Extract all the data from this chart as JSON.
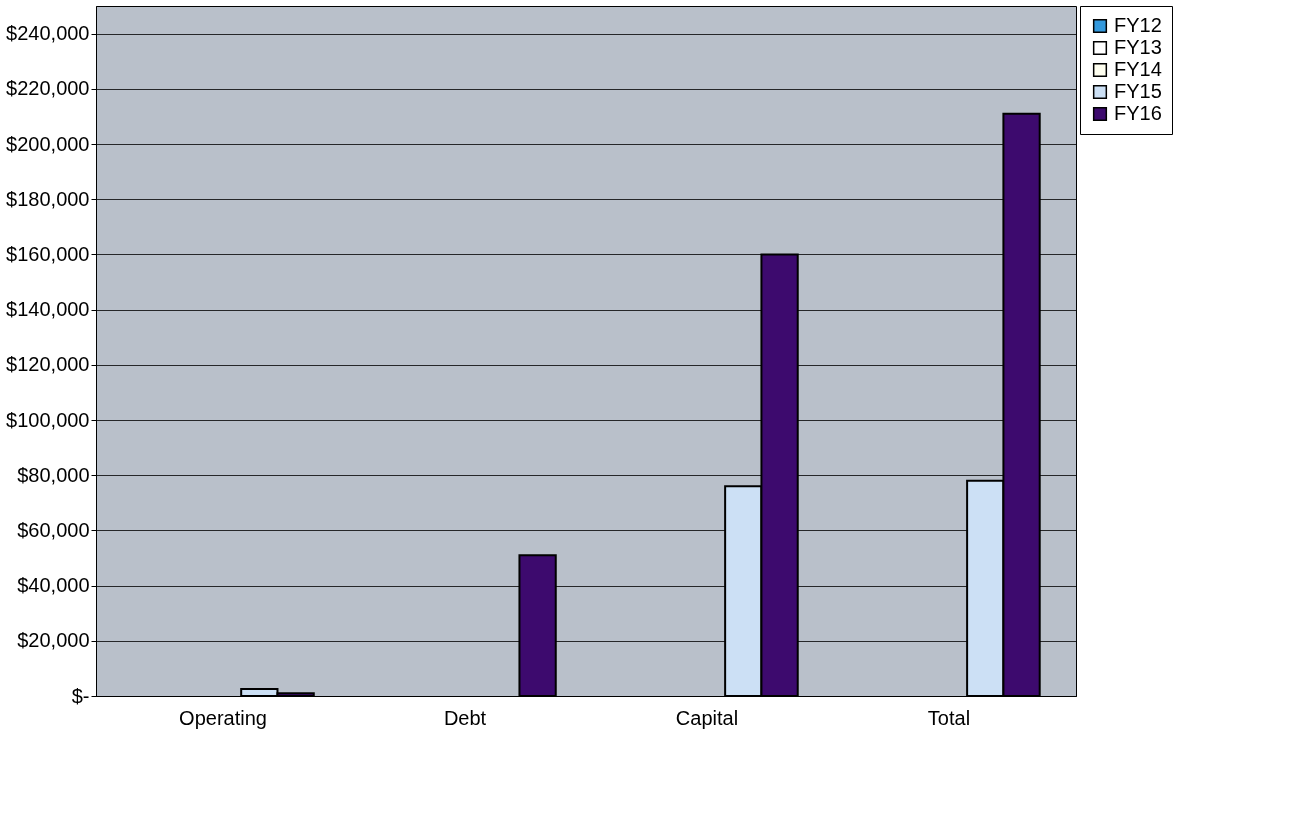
{
  "chart_data": {
    "type": "bar",
    "categories": [
      "Operating",
      "Debt",
      "Capital",
      "Total"
    ],
    "series": [
      {
        "name": "FY12",
        "color": "#3399dd",
        "values": [
          null,
          null,
          null,
          null
        ]
      },
      {
        "name": "FY13",
        "color": "#ffffff",
        "values": [
          null,
          null,
          null,
          null
        ]
      },
      {
        "name": "FY14",
        "color": "#fffff0",
        "values": [
          null,
          null,
          null,
          null
        ]
      },
      {
        "name": "FY15",
        "color": "#cce0f5",
        "values": [
          2500,
          null,
          76000,
          78000
        ]
      },
      {
        "name": "FY16",
        "color": "#3d0a6e",
        "values": [
          1000,
          51000,
          160000,
          211000
        ]
      }
    ],
    "ylim": [
      0,
      250000
    ],
    "yticks": [
      {
        "value": 0,
        "label": "$-"
      },
      {
        "value": 20000,
        "label": "$20,000"
      },
      {
        "value": 40000,
        "label": "$40,000"
      },
      {
        "value": 60000,
        "label": "$60,000"
      },
      {
        "value": 80000,
        "label": "$80,000"
      },
      {
        "value": 100000,
        "label": "$100,000"
      },
      {
        "value": 120000,
        "label": "$120,000"
      },
      {
        "value": 140000,
        "label": "$140,000"
      },
      {
        "value": 160000,
        "label": "$160,000"
      },
      {
        "value": 180000,
        "label": "$180,000"
      },
      {
        "value": 200000,
        "label": "$200,000"
      },
      {
        "value": 220000,
        "label": "$220,000"
      },
      {
        "value": 240000,
        "label": "$240,000"
      }
    ],
    "grid": "y",
    "legend": "right"
  }
}
